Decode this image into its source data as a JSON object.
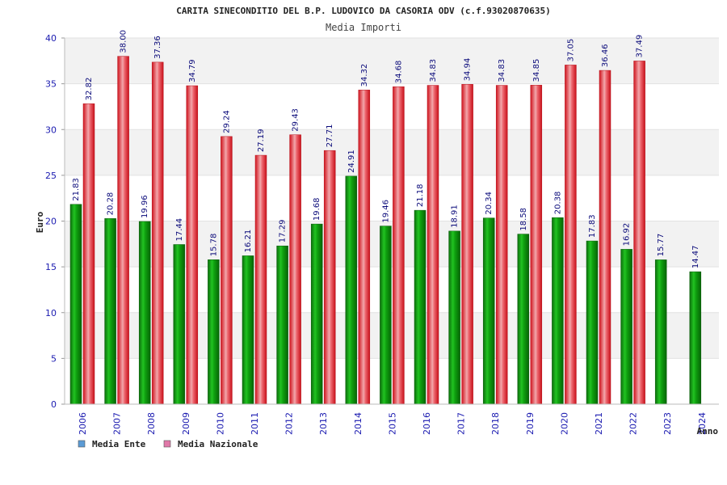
{
  "chart_data": {
    "type": "bar",
    "title": "CARITA SINECONDITIO DEL B.P. LUDOVICO DA CASORIA ODV (c.f.93020870635)",
    "subtitle": "Media Importi",
    "xlabel": "Anno",
    "ylabel": "Euro",
    "ylim": [
      0,
      40
    ],
    "yticks": [
      0,
      5,
      10,
      15,
      20,
      25,
      30,
      35,
      40
    ],
    "grid": true,
    "legend_position": "bottom-left",
    "categories": [
      "2006",
      "2007",
      "2008",
      "2009",
      "2010",
      "2011",
      "2012",
      "2013",
      "2014",
      "2015",
      "2016",
      "2017",
      "2018",
      "2019",
      "2020",
      "2021",
      "2022",
      "2023",
      "2024"
    ],
    "series": [
      {
        "name": "Media Ente",
        "color": "#1ca31c",
        "legend_color": "#5b9bd5",
        "values": [
          21.83,
          20.28,
          19.96,
          17.44,
          15.78,
          16.21,
          17.29,
          19.68,
          24.91,
          19.46,
          21.18,
          18.91,
          20.34,
          18.58,
          20.38,
          17.83,
          16.92,
          15.77,
          14.47
        ],
        "labels": [
          "21.83",
          "20.28",
          "19.96",
          "17.44",
          "15.78",
          "16.21",
          "17.29",
          "19.68",
          "24.91",
          "19.46",
          "21.18",
          "18.91",
          "20.34",
          "18.58",
          "20.38",
          "17.83",
          "16.92",
          "15.77",
          "14.47"
        ]
      },
      {
        "name": "Media Nazionale",
        "color": "#e8303a",
        "legend_color": "#e078a8",
        "values": [
          32.82,
          38.0,
          37.36,
          34.79,
          29.24,
          27.19,
          29.43,
          27.71,
          34.32,
          34.68,
          34.83,
          34.94,
          34.83,
          34.85,
          37.05,
          36.46,
          37.49,
          null,
          null
        ],
        "labels": [
          "32.82",
          "38.00",
          "37.36",
          "34.79",
          "29.24",
          "27.19",
          "29.43",
          "27.71",
          "34.32",
          "34.68",
          "34.83",
          "34.94",
          "34.83",
          "34.85",
          "37.05",
          "36.46",
          "37.49",
          "",
          ""
        ]
      }
    ]
  }
}
